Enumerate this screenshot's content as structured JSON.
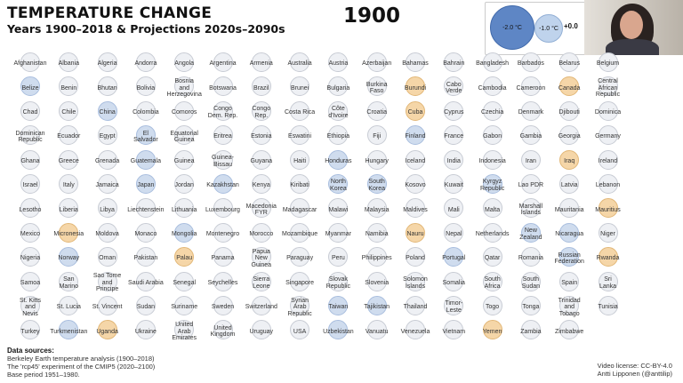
{
  "header": {
    "title": "TEMPERATURE CHANGE",
    "subtitle": "Years 1900–2018 & Projections 2020s–2090s",
    "year": "1900"
  },
  "legend": {
    "big_label": "-2.0 °C",
    "mid_label": "-1.0 °C",
    "small_label": "+0.0"
  },
  "colors": {
    "neutral": "#eef0f4",
    "cool": "#cfdcee",
    "warm": "#f5d6a8",
    "legend_big": "#5e86c5",
    "legend_mid": "#bfd3ec"
  },
  "countries": [
    [
      "Afghanistan",
      "Albania",
      "Algeria",
      "Andorra",
      "Angola",
      "Argentina",
      "Armenia",
      "Australia",
      "Austria",
      "Azerbaijan",
      "Bahamas",
      "Bahrain",
      "Bangladesh",
      "Barbados",
      "Belarus",
      "Belgium"
    ],
    [
      "Belize",
      "Benin",
      "Bhutan",
      "Bolivia",
      "Bosnia\nand\nHerzegovina",
      "Botswana",
      "Brazil",
      "Brunei",
      "Bulgaria",
      "Burkina\nFaso",
      "Burundi",
      "Cabo\nVerde",
      "Cambodia",
      "Cameroon",
      "Canada",
      "Central\nAfrican\nRepublic"
    ],
    [
      "Chad",
      "Chile",
      "China",
      "Colombia",
      "Comoros",
      "Congo\nDem. Rep.",
      "Congo\nRep.",
      "Costa Rica",
      "Côte\nd'Ivoire",
      "Croatia",
      "Cuba",
      "Cyprus",
      "Czechia",
      "Denmark",
      "Djibouti",
      "Dominica"
    ],
    [
      "Dominican\nRepublic",
      "Ecuador",
      "Egypt",
      "El\nSalvador",
      "Equatorial\nGuinea",
      "Eritrea",
      "Estonia",
      "Eswatini",
      "Ethiopia",
      "Fiji",
      "Finland",
      "France",
      "Gabon",
      "Gambia",
      "Georgia",
      "Germany"
    ],
    [
      "Ghana",
      "Greece",
      "Grenada",
      "Guatemala",
      "Guinea",
      "Guinea-\nBissau",
      "Guyana",
      "Haiti",
      "Honduras",
      "Hungary",
      "Iceland",
      "India",
      "Indonesia",
      "Iran",
      "Iraq",
      "Ireland"
    ],
    [
      "Israel",
      "Italy",
      "Jamaica",
      "Japan",
      "Jordan",
      "Kazakhstan",
      "Kenya",
      "Kiribati",
      "North\nKorea",
      "South\nKorea",
      "Kosovo",
      "Kuwait",
      "Kyrgyz\nRepublic",
      "Lao PDR",
      "Latvia",
      "Lebanon"
    ],
    [
      "Lesotho",
      "Liberia",
      "Libya",
      "Liechtenstein",
      "Lithuania",
      "Luxembourg",
      "Macedonia\nFYR",
      "Madagascar",
      "Malawi",
      "Malaysia",
      "Maldives",
      "Mali",
      "Malta",
      "Marshall\nIslands",
      "Mauritania",
      "Mauritius"
    ],
    [
      "Mexico",
      "Micronesia",
      "Moldova",
      "Monaco",
      "Mongolia",
      "Montenegro",
      "Morocco",
      "Mozambique",
      "Myanmar",
      "Namibia",
      "Nauru",
      "Nepal",
      "Netherlands",
      "New\nZealand",
      "Nicaragua",
      "Niger"
    ],
    [
      "Nigeria",
      "Norway",
      "Oman",
      "Pakistan",
      "Palau",
      "Panama",
      "Papua\nNew\nGuinea",
      "Paraguay",
      "Peru",
      "Philippines",
      "Poland",
      "Portugal",
      "Qatar",
      "Romania",
      "Russian\nFederation",
      "Rwanda"
    ],
    [
      "Samoa",
      "San\nMarino",
      "Sao Tome\nand\nPrincipe",
      "Saudi Arabia",
      "Senegal",
      "Seychelles",
      "Sierra\nLeone",
      "Singapore",
      "Slovak\nRepublic",
      "Slovenia",
      "Solomon\nIslands",
      "Somalia",
      "South\nAfrica",
      "South\nSudan",
      "Spain",
      "Sri\nLanka"
    ],
    [
      "St. Kitts\nand\nNevis",
      "St. Lucia",
      "St. Vincent",
      "Sudan",
      "Suriname",
      "Sweden",
      "Switzerland",
      "Syrian\nArab\nRepublic",
      "Taiwan",
      "Tajikistan",
      "Thailand",
      "Timor-\nLeste",
      "Togo",
      "Tonga",
      "Trinidad\nand\nTobago",
      "Tunisia"
    ],
    [
      "Turkey",
      "Turkmenistan",
      "Uganda",
      "Ukraine",
      "United\nArab\nEmirates",
      "United\nKingdom",
      "Uruguay",
      "USA",
      "Uzbekistan",
      "Vanuatu",
      "Venezuela",
      "Vietnam",
      "Yemen",
      "Zambia",
      "Zimbabwe"
    ]
  ],
  "highlight_cool": [
    "Belize",
    "China",
    "El\nSalvador",
    "Guatemala",
    "Japan",
    "Kazakhstan",
    "Honduras",
    "North\nKorea",
    "South\nKorea",
    "Kyrgyz\nRepublic",
    "Mongolia",
    "New\nZealand",
    "Nicaragua",
    "Finland",
    "Norway",
    "Russian\nFederation",
    "Taiwan",
    "Tajikistan",
    "Uzbekistan",
    "Turkmenistan",
    "Portugal"
  ],
  "highlight_warm": [
    "Burundi",
    "Canada",
    "Iraq",
    "Micronesia",
    "Nauru",
    "Palau",
    "Rwanda",
    "Uganda",
    "Mauritius",
    "Yemen",
    "Cuba"
  ],
  "footer": {
    "sources_title": "Data sources:",
    "sources_lines": [
      "Berkeley Earth temperature analysis (1900–2018)",
      "The 'rcp45' experiment of the CMIP5 (2020–2100)",
      "Base period 1951–1980."
    ],
    "license": "Video license: CC-BY-4.0",
    "author": "Antti Lipponen (@anttilip)"
  }
}
